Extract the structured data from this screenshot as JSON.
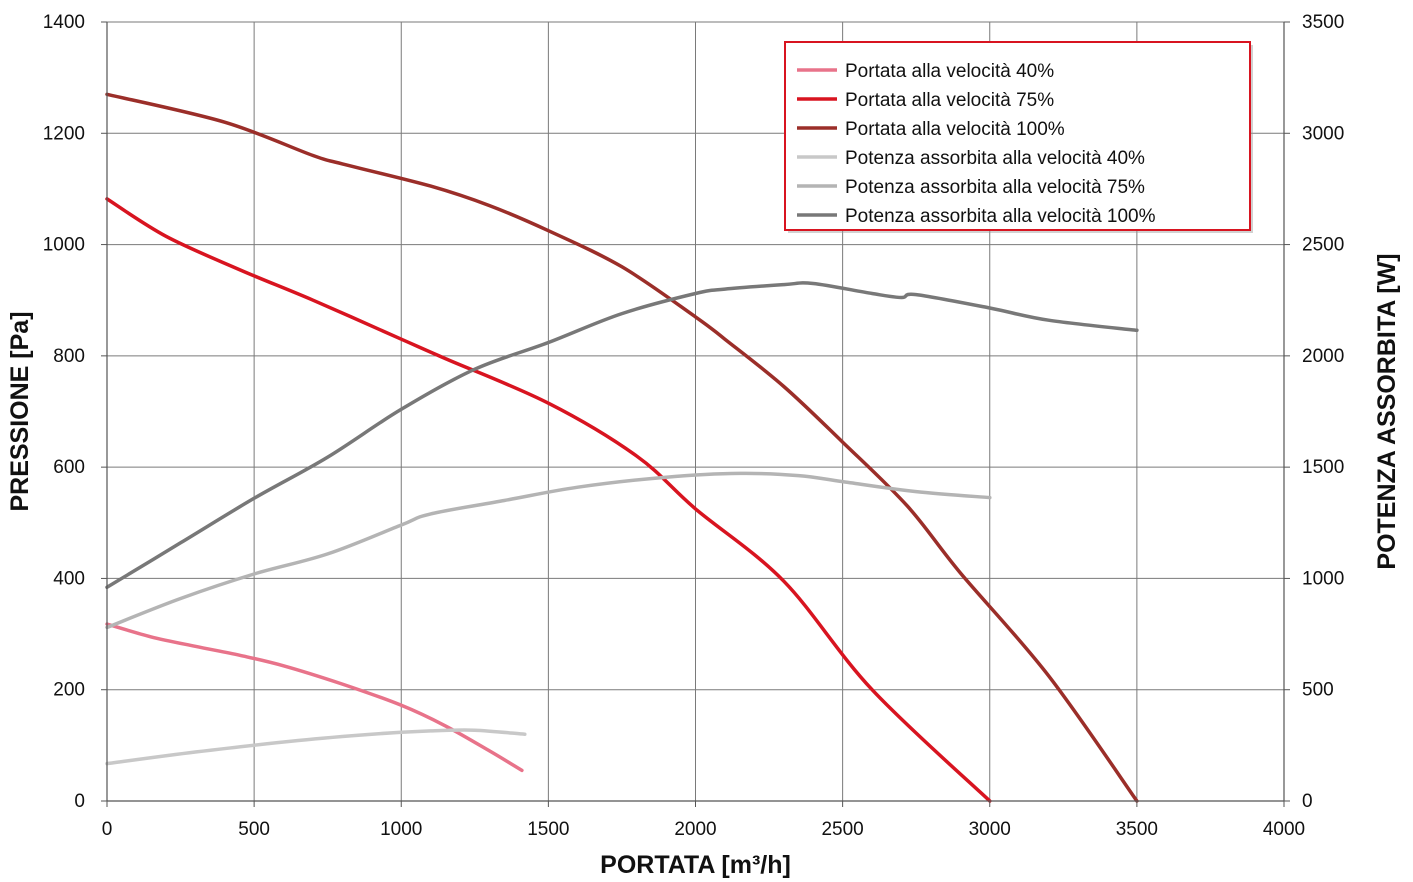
{
  "chart_data": {
    "type": "line",
    "title": "",
    "xlabel": "PORTATA [m³/h]",
    "ylabel": "PRESSIONE [Pa]",
    "y2label": "POTENZA ASSORBITA [W]",
    "xlim": [
      0,
      4000
    ],
    "ylim": [
      0,
      1400
    ],
    "y2lim": [
      0,
      3500
    ],
    "xticks": [
      0,
      500,
      1000,
      1500,
      2000,
      2500,
      3000,
      3500,
      4000
    ],
    "yticks": [
      0,
      200,
      400,
      600,
      800,
      1000,
      1200,
      1400
    ],
    "y2ticks": [
      0,
      500,
      1000,
      1500,
      2000,
      2500,
      3000,
      3500
    ],
    "grid": true,
    "legend_position": "top-right",
    "series": [
      {
        "name": "Portata alla velocità 40%",
        "axis": "left",
        "color": "#e8738a",
        "x": [
          0,
          150,
          300,
          450,
          600,
          800,
          1000,
          1150,
          1300,
          1410
        ],
        "y": [
          318,
          295,
          278,
          262,
          243,
          210,
          172,
          135,
          90,
          55
        ]
      },
      {
        "name": "Portata alla velocità 75%",
        "axis": "left",
        "color": "#d81420",
        "x": [
          0,
          200,
          450,
          700,
          1000,
          1150,
          1500,
          1800,
          2000,
          2300,
          2600,
          3000
        ],
        "y": [
          1082,
          1015,
          955,
          900,
          830,
          795,
          715,
          620,
          525,
          395,
          200,
          0
        ]
      },
      {
        "name": "Portata alla velocità 100%",
        "axis": "left",
        "color": "#9b2e29",
        "x": [
          0,
          400,
          700,
          800,
          1100,
          1300,
          1500,
          1750,
          2000,
          2100,
          2300,
          2500,
          2720,
          2900,
          3200,
          3500
        ],
        "y": [
          1270,
          1220,
          1160,
          1145,
          1105,
          1070,
          1025,
          960,
          870,
          830,
          745,
          645,
          530,
          410,
          225,
          0
        ]
      },
      {
        "name": "Potenza assorbita alla velocità 40%",
        "axis": "right",
        "color": "#c8c8c8",
        "x": [
          0,
          300,
          650,
          900,
          1100,
          1250,
          1420
        ],
        "y": [
          168,
          220,
          272,
          300,
          315,
          318,
          300
        ]
      },
      {
        "name": "Potenza assorbita alla velocità 75%",
        "axis": "right",
        "color": "#b4b4b4",
        "x": [
          0,
          250,
          500,
          750,
          1000,
          1100,
          1350,
          1600,
          1900,
          2150,
          2350,
          2500,
          2750,
          3000
        ],
        "y": [
          780,
          910,
          1020,
          1110,
          1240,
          1290,
          1350,
          1410,
          1455,
          1472,
          1462,
          1435,
          1390,
          1363
        ]
      },
      {
        "name": "Potenza assorbita alla velocità 100%",
        "axis": "right",
        "color": "#787878",
        "x": [
          0,
          250,
          500,
          750,
          1000,
          1250,
          1500,
          1750,
          2000,
          2100,
          2300,
          2400,
          2600,
          2700,
          2750,
          3000,
          3200,
          3500
        ],
        "y": [
          960,
          1160,
          1360,
          1545,
          1760,
          1940,
          2060,
          2190,
          2280,
          2300,
          2320,
          2325,
          2280,
          2262,
          2275,
          2215,
          2160,
          2115
        ]
      }
    ]
  }
}
